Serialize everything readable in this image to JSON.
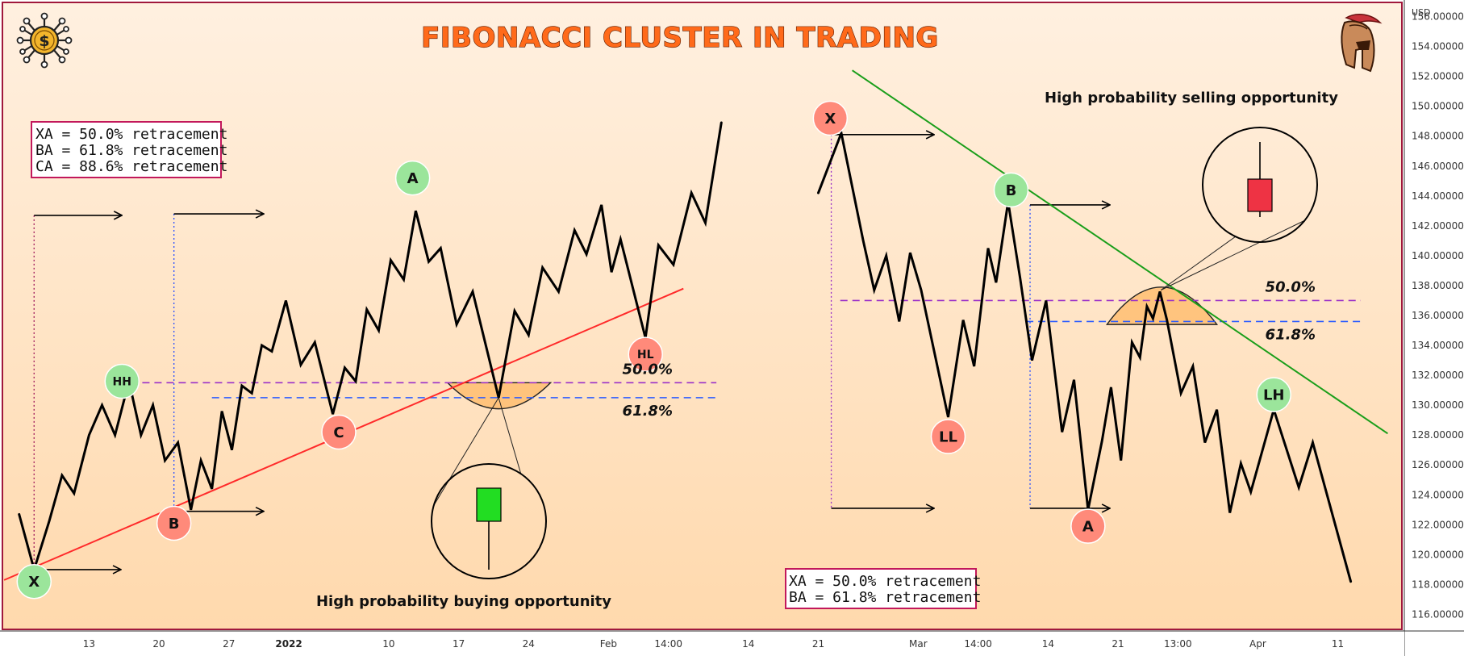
{
  "title": "FIBONACCI CLUSTER IN TRADING",
  "currency": "USD",
  "colors": {
    "background_top": "#fff0e0",
    "background_bottom": "#ffd9ad",
    "frame": "#a0183c",
    "up_trendline": "#ff2a2a",
    "down_trendline": "#1a9e1a",
    "fib50_line": "#9b30c8",
    "fib618_line": "#2a5bff",
    "cluster_fill": "#ffb866",
    "green_point": "#9be59b",
    "red_point": "#ff8a7a",
    "bull_candle": "#22dd22",
    "bear_candle": "#ee3344"
  },
  "icons": [
    "dollar-circuit-icon",
    "spartan-helmet-icon"
  ],
  "chart_data": {
    "type": "line",
    "y_axis": {
      "min": 115,
      "max": 157,
      "ticks": [
        "156.00000",
        "154.00000",
        "152.00000",
        "150.00000",
        "148.00000",
        "146.00000",
        "144.00000",
        "142.00000",
        "140.00000",
        "138.00000",
        "136.00000",
        "134.00000",
        "132.00000",
        "130.00000",
        "128.00000",
        "126.00000",
        "124.00000",
        "122.00000",
        "120.00000",
        "118.00000",
        "116.00000"
      ]
    },
    "x_axis": {
      "ticks": [
        {
          "label": "13",
          "x": 13,
          "bold": false
        },
        {
          "label": "20",
          "x": 20,
          "bold": false
        },
        {
          "label": "27",
          "x": 27,
          "bold": false
        },
        {
          "label": "2022",
          "x": 33,
          "bold": true
        },
        {
          "label": "10",
          "x": 43,
          "bold": false
        },
        {
          "label": "17",
          "x": 50,
          "bold": false
        },
        {
          "label": "24",
          "x": 57,
          "bold": false
        },
        {
          "label": "Feb",
          "x": 65,
          "bold": false
        },
        {
          "label": "14:00",
          "x": 71,
          "bold": false
        },
        {
          "label": "14",
          "x": 79,
          "bold": false
        },
        {
          "label": "21",
          "x": 86,
          "bold": false
        },
        {
          "label": "Mar",
          "x": 96,
          "bold": false
        },
        {
          "label": "14:00",
          "x": 102,
          "bold": false
        },
        {
          "label": "14",
          "x": 109,
          "bold": false
        },
        {
          "label": "21",
          "x": 116,
          "bold": false
        },
        {
          "label": "13:00",
          "x": 122,
          "bold": false
        },
        {
          "label": "Apr",
          "x": 130,
          "bold": false
        },
        {
          "label": "11",
          "x": 138,
          "bold": false
        }
      ],
      "min": 4.25,
      "max": 144.5
    },
    "left_pattern": {
      "annotation": "High probability buying opportunity",
      "retracement_notes": [
        "XA = 50.0% retracement",
        "BA = 61.8% retracement",
        "CA = 88.6% retracement"
      ],
      "fib_levels": [
        {
          "label": "50.0%",
          "value": 131.5
        },
        {
          "label": "61.8%",
          "value": 130.5
        }
      ],
      "trendline": {
        "from": [
          4.5,
          118.3
        ],
        "to": [
          72.5,
          137.8
        ]
      },
      "series": [
        {
          "x": 6,
          "y": 122.7
        },
        {
          "x": 7.5,
          "y": 119
        },
        {
          "x": 9,
          "y": 122.2
        },
        {
          "x": 10.3,
          "y": 125.3
        },
        {
          "x": 11.5,
          "y": 124.1
        },
        {
          "x": 13,
          "y": 128
        },
        {
          "x": 14.3,
          "y": 130
        },
        {
          "x": 15.6,
          "y": 128
        },
        {
          "x": 17,
          "y": 131.6
        },
        {
          "x": 18.2,
          "y": 128
        },
        {
          "x": 19.4,
          "y": 130
        },
        {
          "x": 20.6,
          "y": 126.3
        },
        {
          "x": 21.9,
          "y": 127.5
        },
        {
          "x": 23.2,
          "y": 123
        },
        {
          "x": 24.2,
          "y": 126.3
        },
        {
          "x": 25.3,
          "y": 124.4
        },
        {
          "x": 26.3,
          "y": 129.6
        },
        {
          "x": 27.3,
          "y": 127
        },
        {
          "x": 28.3,
          "y": 131.3
        },
        {
          "x": 29.3,
          "y": 130.8
        },
        {
          "x": 30.3,
          "y": 134
        },
        {
          "x": 31.3,
          "y": 133.6
        },
        {
          "x": 32.7,
          "y": 137
        },
        {
          "x": 34.2,
          "y": 132.7
        },
        {
          "x": 35.6,
          "y": 134.2
        },
        {
          "x": 37.4,
          "y": 129.4
        },
        {
          "x": 38.6,
          "y": 132.5
        },
        {
          "x": 39.7,
          "y": 131.6
        },
        {
          "x": 40.8,
          "y": 136.4
        },
        {
          "x": 42,
          "y": 135
        },
        {
          "x": 43.2,
          "y": 139.7
        },
        {
          "x": 44.5,
          "y": 138.4
        },
        {
          "x": 45.7,
          "y": 143
        },
        {
          "x": 47,
          "y": 139.6
        },
        {
          "x": 48.2,
          "y": 140.5
        },
        {
          "x": 49.8,
          "y": 135.4
        },
        {
          "x": 51.4,
          "y": 137.6
        },
        {
          "x": 54,
          "y": 130.5
        },
        {
          "x": 55.6,
          "y": 136.3
        },
        {
          "x": 57,
          "y": 134.7
        },
        {
          "x": 58.4,
          "y": 139.2
        },
        {
          "x": 60,
          "y": 137.6
        },
        {
          "x": 61.6,
          "y": 141.7
        },
        {
          "x": 62.8,
          "y": 140.1
        },
        {
          "x": 64.3,
          "y": 143.4
        },
        {
          "x": 65.3,
          "y": 138.9
        },
        {
          "x": 66.2,
          "y": 141.1
        },
        {
          "x": 68.7,
          "y": 134.5
        },
        {
          "x": 70,
          "y": 140.7
        },
        {
          "x": 71.5,
          "y": 139.4
        },
        {
          "x": 73.3,
          "y": 144.2
        },
        {
          "x": 74.7,
          "y": 142.2
        },
        {
          "x": 76.3,
          "y": 148.9
        }
      ],
      "points": [
        {
          "label": "X",
          "x": 7.5,
          "y": 118.2,
          "color": "green"
        },
        {
          "label": "HH",
          "x": 16.3,
          "y": 131.6,
          "color": "green"
        },
        {
          "label": "B",
          "x": 21.5,
          "y": 122.1,
          "color": "red"
        },
        {
          "label": "C",
          "x": 38,
          "y": 128.2,
          "color": "red"
        },
        {
          "label": "A",
          "x": 45.4,
          "y": 145.2,
          "color": "green"
        },
        {
          "label": "HL",
          "x": 68.7,
          "y": 133.4,
          "color": "red"
        }
      ]
    },
    "right_pattern": {
      "annotation": "High probability selling opportunity",
      "retracement_notes": [
        "XA = 50.0% retracement",
        "BA = 61.8% retracement"
      ],
      "fib_levels": [
        {
          "label": "50.0%",
          "value": 137
        },
        {
          "label": "61.8%",
          "value": 135.6
        }
      ],
      "trendline": {
        "from": [
          89.4,
          152.4
        ],
        "to": [
          143,
          128.1
        ]
      },
      "series": [
        {
          "x": 86,
          "y": 144.2
        },
        {
          "x": 88.3,
          "y": 148.2
        },
        {
          "x": 90.5,
          "y": 141
        },
        {
          "x": 91.6,
          "y": 137.7
        },
        {
          "x": 92.8,
          "y": 140
        },
        {
          "x": 94.1,
          "y": 135.6
        },
        {
          "x": 95.2,
          "y": 140.2
        },
        {
          "x": 96.3,
          "y": 137.7
        },
        {
          "x": 99,
          "y": 129.2
        },
        {
          "x": 100.5,
          "y": 135.7
        },
        {
          "x": 101.6,
          "y": 132.6
        },
        {
          "x": 103,
          "y": 140.5
        },
        {
          "x": 103.8,
          "y": 138.2
        },
        {
          "x": 105,
          "y": 143.6
        },
        {
          "x": 106.2,
          "y": 138.5
        },
        {
          "x": 107.4,
          "y": 133
        },
        {
          "x": 108.8,
          "y": 137
        },
        {
          "x": 110.4,
          "y": 128.2
        },
        {
          "x": 111.6,
          "y": 131.7
        },
        {
          "x": 113,
          "y": 123
        },
        {
          "x": 114.4,
          "y": 127.6
        },
        {
          "x": 115.3,
          "y": 131.2
        },
        {
          "x": 116.3,
          "y": 126.3
        },
        {
          "x": 117.4,
          "y": 134.2
        },
        {
          "x": 118.2,
          "y": 133.2
        },
        {
          "x": 118.9,
          "y": 136.6
        },
        {
          "x": 119.5,
          "y": 135.8
        },
        {
          "x": 120.2,
          "y": 137.6
        },
        {
          "x": 120.9,
          "y": 135.7
        },
        {
          "x": 122.3,
          "y": 130.8
        },
        {
          "x": 123.5,
          "y": 132.6
        },
        {
          "x": 124.7,
          "y": 127.5
        },
        {
          "x": 125.9,
          "y": 129.7
        },
        {
          "x": 127.2,
          "y": 122.8
        },
        {
          "x": 128.3,
          "y": 126.1
        },
        {
          "x": 129.3,
          "y": 124.2
        },
        {
          "x": 131.6,
          "y": 129.7
        },
        {
          "x": 134.1,
          "y": 124.5
        },
        {
          "x": 135.5,
          "y": 127.5
        },
        {
          "x": 139.3,
          "y": 118.2
        }
      ],
      "points": [
        {
          "label": "X",
          "x": 87.2,
          "y": 149.2,
          "color": "red"
        },
        {
          "label": "B",
          "x": 105.3,
          "y": 144.4,
          "color": "green"
        },
        {
          "label": "LL",
          "x": 99,
          "y": 127.9,
          "color": "red"
        },
        {
          "label": "A",
          "x": 113,
          "y": 121.9,
          "color": "red"
        },
        {
          "label": "LH",
          "x": 131.6,
          "y": 130.7,
          "color": "green"
        }
      ]
    }
  }
}
